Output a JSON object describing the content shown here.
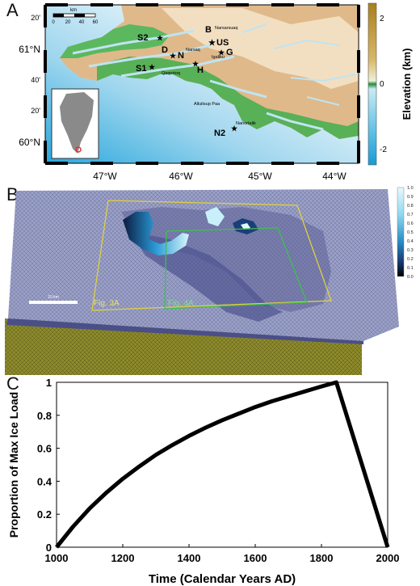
{
  "panels": {
    "a": {
      "letter": "A"
    },
    "b": {
      "letter": "B"
    },
    "c": {
      "letter": "C"
    }
  },
  "map": {
    "lat_labels": [
      "20'",
      "61°N",
      "40'",
      "20'",
      "60°N"
    ],
    "lon_labels": [
      "47°W",
      "46°W",
      "45°W",
      "44°W"
    ],
    "scalebar_unit": "km",
    "scalebar_ticks": [
      "0",
      "20",
      "40",
      "60"
    ],
    "sites": [
      {
        "label": "S2"
      },
      {
        "label": "B"
      },
      {
        "label": "US"
      },
      {
        "label": "D"
      },
      {
        "label": "N"
      },
      {
        "label": "G"
      },
      {
        "label": "S1"
      },
      {
        "label": "H"
      },
      {
        "label": "N2"
      }
    ],
    "place_names": [
      "Narsarsuaq",
      "Narsaq",
      "Igaliku",
      "Qaqortoq",
      "Alluitsup Paa",
      "Nanortalik"
    ],
    "colorbar": {
      "title": "Elevation (km)",
      "ticks": [
        "2",
        "0",
        "-2"
      ],
      "colors": {
        "high": "#b8860b",
        "mid": "#2e9e3e",
        "low": "#1ea4d8",
        "ocean": "#eaf6fb"
      }
    }
  },
  "model": {
    "colorbar_ticks": [
      "1.0",
      "0.9",
      "0.8",
      "0.7",
      "0.6",
      "0.5",
      "0.4",
      "0.3",
      "0.2",
      "0.1",
      "0.0"
    ],
    "scalebar_label": "10 km",
    "box_labels": [
      "Fig. 3A",
      "Fig. 4A"
    ],
    "colors": {
      "mesh": "#8a8fb8",
      "mesh_dark": "#5a5f9a",
      "base": "#8c8a2a",
      "yellow_box": "#e0d040",
      "green_box": "#3fbf4f"
    }
  },
  "chart_data": {
    "type": "line",
    "title": "",
    "xlabel": "Time (Calendar Years AD)",
    "ylabel": "Proportion of Max Ice Load",
    "xlim": [
      1000,
      2000
    ],
    "ylim": [
      0,
      1
    ],
    "xticks": [
      "1000",
      "1200",
      "1400",
      "1600",
      "1800",
      "2000"
    ],
    "yticks": [
      "0",
      "0.2",
      "0.4",
      "0.6",
      "0.8",
      "1"
    ],
    "grid": false,
    "series": [
      {
        "color": "#000000",
        "x": [
          1000,
          1050,
          1100,
          1150,
          1200,
          1250,
          1300,
          1350,
          1400,
          1450,
          1500,
          1550,
          1600,
          1650,
          1700,
          1750,
          1800,
          1845,
          2000
        ],
        "values": [
          0,
          0.125,
          0.235,
          0.33,
          0.415,
          0.49,
          0.56,
          0.62,
          0.675,
          0.725,
          0.77,
          0.81,
          0.85,
          0.885,
          0.915,
          0.945,
          0.975,
          1.0,
          0
        ]
      }
    ]
  }
}
